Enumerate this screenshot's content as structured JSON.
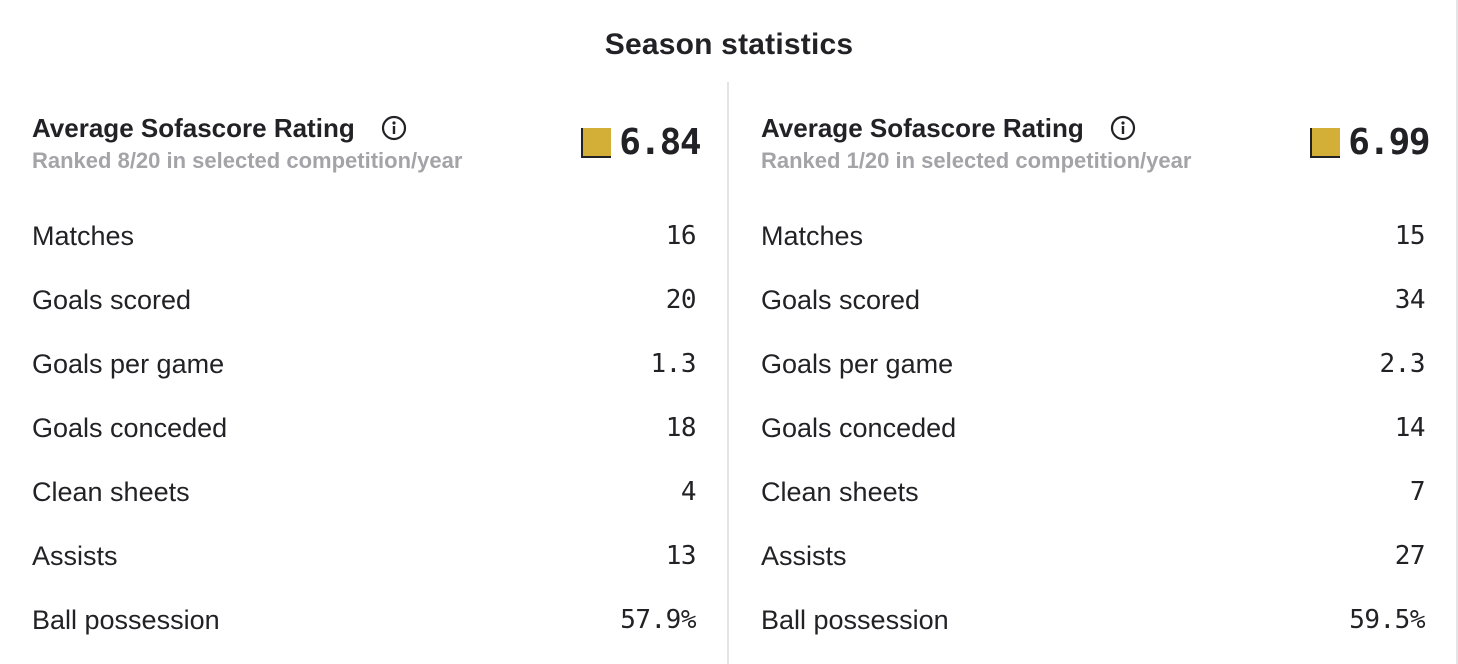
{
  "title": "Season statistics",
  "colors": {
    "rating_swatch": "#d4af37",
    "divider": "#e4e4e6",
    "muted_text": "#a4a4a8",
    "text": "#222226"
  },
  "panels": [
    {
      "rating": {
        "label": "Average Sofascore Rating",
        "icon": "info-icon",
        "rank_text": "Ranked 8/20 in selected competition/year",
        "value": "6.84"
      },
      "stats": [
        {
          "label": "Matches",
          "value": "16"
        },
        {
          "label": "Goals scored",
          "value": "20"
        },
        {
          "label": "Goals per game",
          "value": "1.3"
        },
        {
          "label": "Goals conceded",
          "value": "18"
        },
        {
          "label": "Clean sheets",
          "value": "4"
        },
        {
          "label": "Assists",
          "value": "13"
        },
        {
          "label": "Ball possession",
          "value": "57.9%"
        }
      ]
    },
    {
      "rating": {
        "label": "Average Sofascore Rating",
        "icon": "info-icon",
        "rank_text": "Ranked 1/20 in selected competition/year",
        "value": "6.99"
      },
      "stats": [
        {
          "label": "Matches",
          "value": "15"
        },
        {
          "label": "Goals scored",
          "value": "34"
        },
        {
          "label": "Goals per game",
          "value": "2.3"
        },
        {
          "label": "Goals conceded",
          "value": "14"
        },
        {
          "label": "Clean sheets",
          "value": "7"
        },
        {
          "label": "Assists",
          "value": "27"
        },
        {
          "label": "Ball possession",
          "value": "59.5%"
        }
      ]
    }
  ]
}
